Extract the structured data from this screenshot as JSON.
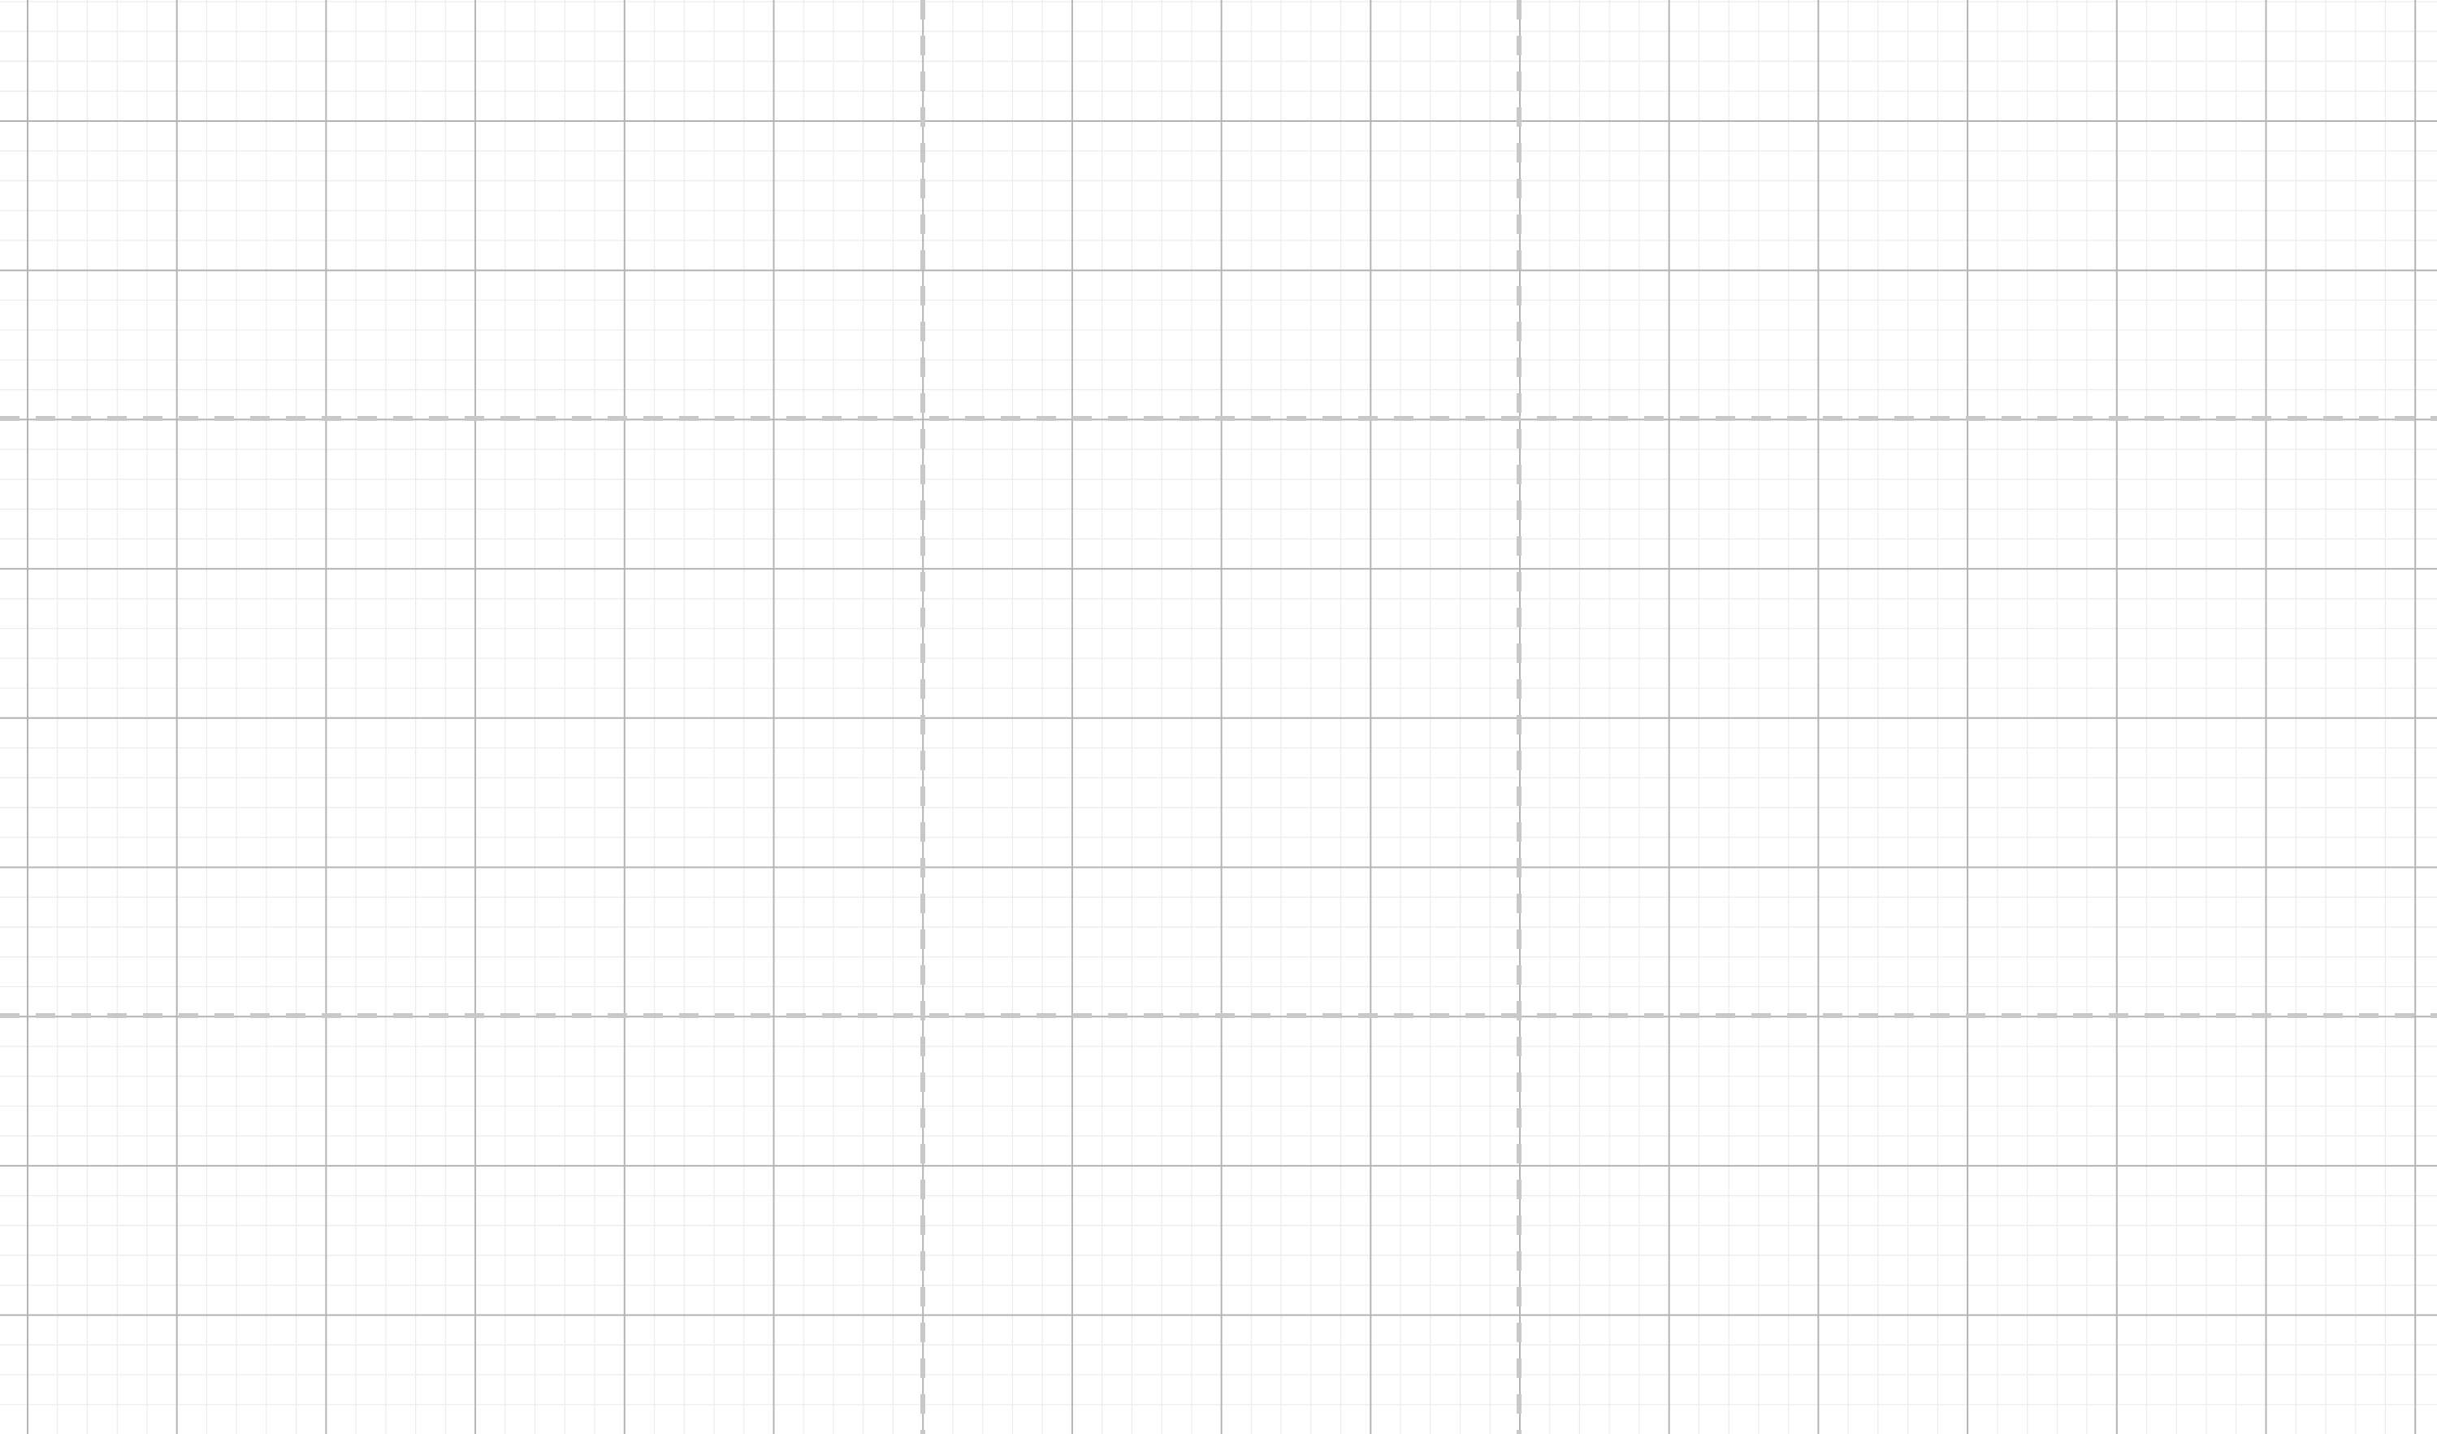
{
  "canvas": {
    "background_color": "#ffffff",
    "minor_grid_color": "#ebebeb",
    "major_grid_color": "#b4b4b4",
    "guide_line_color": "#c8c8c8",
    "minor_divisions_per_major": 5,
    "major_columns": 16,
    "major_rows": 10,
    "guide_line_style": "dashed"
  }
}
